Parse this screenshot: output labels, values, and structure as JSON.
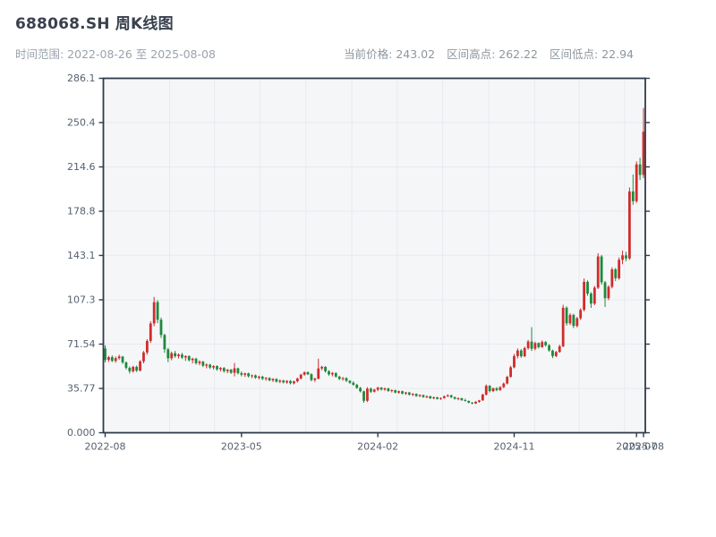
{
  "header": {
    "title": "688068.SH 周K线图",
    "subtitle": "时间范围: 2022-08-26 至 2025-08-08",
    "stats": [
      {
        "label": "当前价格",
        "value": "243.02",
        "text": "当前价格: 243.02"
      },
      {
        "label": "区间高点",
        "value": "262.22",
        "text": "区间高点: 262.22"
      },
      {
        "label": "区间低点",
        "value": "22.94",
        "text": "区间低点: 22.94"
      }
    ]
  },
  "colors": {
    "up": "#d02c2c",
    "down": "#1e8a3c",
    "plot_bg": "#f5f6f8",
    "grid": "#e7eaef",
    "spine": "#2f3b4c",
    "tick_label": "#55606e",
    "title": "#39414e",
    "muted": "#99a2ac"
  },
  "chart_data": {
    "type": "candlestick",
    "title": "688068.SH 周K线图",
    "interval": "weekly",
    "date_range": {
      "start": "2022-08-26",
      "end": "2025-08-08"
    },
    "current_price": 243.02,
    "range_high": 262.22,
    "range_low": 22.94,
    "ylim": [
      0,
      286.1
    ],
    "grid": "on",
    "color_convention": "red = weekly gain, green = weekly loss",
    "y_ticks": [
      {
        "v": 0,
        "label": "0.000"
      },
      {
        "v": 35.77,
        "label": "35.77"
      },
      {
        "v": 71.54,
        "label": "71.54"
      },
      {
        "v": 107.3,
        "label": "107.3"
      },
      {
        "v": 143.1,
        "label": "143.1"
      },
      {
        "v": 178.8,
        "label": "178.8"
      },
      {
        "v": 214.6,
        "label": "214.6"
      },
      {
        "v": 250.4,
        "label": "250.4"
      },
      {
        "v": 286.1,
        "label": "286.1"
      }
    ],
    "x_ticks": [
      {
        "label": "2022-08",
        "week": 0
      },
      {
        "label": "2023-05",
        "week": 39
      },
      {
        "label": "2024-02",
        "week": 78
      },
      {
        "label": "2024-11",
        "week": 117
      },
      {
        "label": "2025-07",
        "week": 152
      },
      {
        "label": "2025-08",
        "week": 154
      }
    ],
    "columns": [
      "date",
      "open",
      "high",
      "low",
      "close"
    ],
    "candles": [
      [
        "2022-08-26",
        68.0,
        70.5,
        56.8,
        58.8
      ],
      [
        "2022-09-02",
        58.8,
        62.0,
        57.2,
        61.0
      ],
      [
        "2022-09-09",
        61.0,
        62.5,
        57.0,
        58.0
      ],
      [
        "2022-09-16",
        58.0,
        61.5,
        56.5,
        60.2
      ],
      [
        "2022-09-23",
        60.2,
        63.0,
        59.0,
        61.5
      ],
      [
        "2022-09-30",
        61.5,
        62.0,
        55.5,
        56.8
      ],
      [
        "2022-10-07",
        56.8,
        57.5,
        51.0,
        52.4
      ],
      [
        "2022-10-14",
        52.4,
        53.5,
        47.8,
        49.6
      ],
      [
        "2022-10-21",
        49.6,
        54.0,
        48.5,
        53.2
      ],
      [
        "2022-10-28",
        53.2,
        54.2,
        49.0,
        50.1
      ],
      [
        "2022-11-04",
        50.1,
        58.5,
        49.5,
        57.6
      ],
      [
        "2022-11-11",
        57.6,
        66.0,
        56.0,
        64.8
      ],
      [
        "2022-11-18",
        64.8,
        75.5,
        63.0,
        74.1
      ],
      [
        "2022-11-25",
        74.1,
        90.0,
        72.5,
        88.2
      ],
      [
        "2022-12-02",
        88.2,
        109.6,
        86.0,
        105.4
      ],
      [
        "2022-12-09",
        105.4,
        107.0,
        88.5,
        91.2
      ],
      [
        "2022-12-16",
        91.2,
        93.0,
        76.5,
        78.9
      ],
      [
        "2022-12-23",
        78.9,
        80.0,
        64.5,
        67.3
      ],
      [
        "2022-12-30",
        67.3,
        68.5,
        57.0,
        60.1
      ],
      [
        "2023-01-06",
        60.1,
        65.5,
        58.5,
        64.2
      ],
      [
        "2023-01-13",
        64.2,
        66.0,
        60.5,
        61.8
      ],
      [
        "2023-01-20",
        61.8,
        64.0,
        60.0,
        63.1
      ],
      [
        "2023-01-27",
        63.1,
        64.5,
        59.5,
        60.7
      ],
      [
        "2023-02-03",
        60.7,
        62.5,
        58.0,
        61.9
      ],
      [
        "2023-02-10",
        61.9,
        62.5,
        57.5,
        58.6
      ],
      [
        "2023-02-17",
        58.6,
        60.5,
        56.0,
        59.8
      ],
      [
        "2023-02-24",
        59.8,
        60.5,
        55.0,
        56.2
      ],
      [
        "2023-03-03",
        56.2,
        58.5,
        54.5,
        57.4
      ],
      [
        "2023-03-10",
        57.4,
        58.0,
        53.0,
        54.1
      ],
      [
        "2023-03-17",
        54.1,
        56.0,
        52.0,
        55.0
      ],
      [
        "2023-03-24",
        55.0,
        55.5,
        51.5,
        52.6
      ],
      [
        "2023-03-31",
        52.6,
        54.5,
        51.0,
        53.8
      ],
      [
        "2023-04-07",
        53.8,
        54.5,
        50.0,
        51.2
      ],
      [
        "2023-04-14",
        51.2,
        53.0,
        49.5,
        52.3
      ],
      [
        "2023-04-21",
        52.3,
        53.0,
        48.5,
        49.7
      ],
      [
        "2023-04-28",
        49.7,
        51.5,
        48.0,
        50.9
      ],
      [
        "2023-05-05",
        50.9,
        51.5,
        47.5,
        48.4
      ],
      [
        "2023-05-12",
        48.4,
        56.3,
        45.5,
        52.0
      ],
      [
        "2023-05-19",
        52.0,
        52.5,
        47.0,
        48.1
      ],
      [
        "2023-05-26",
        48.1,
        49.5,
        45.5,
        46.8
      ],
      [
        "2023-06-02",
        46.8,
        48.5,
        45.0,
        47.9
      ],
      [
        "2023-06-09",
        47.9,
        48.5,
        44.5,
        45.6
      ],
      [
        "2023-06-16",
        45.6,
        47.0,
        44.0,
        46.3
      ],
      [
        "2023-06-23",
        46.3,
        47.0,
        43.5,
        44.4
      ],
      [
        "2023-06-30",
        44.4,
        46.0,
        43.0,
        45.3
      ],
      [
        "2023-07-07",
        45.3,
        46.0,
        42.5,
        43.5
      ],
      [
        "2023-07-14",
        43.5,
        45.0,
        42.0,
        44.2
      ],
      [
        "2023-07-21",
        44.2,
        44.8,
        41.5,
        42.3
      ],
      [
        "2023-07-28",
        42.3,
        44.0,
        41.0,
        43.4
      ],
      [
        "2023-08-04",
        43.4,
        44.0,
        40.5,
        41.2
      ],
      [
        "2023-08-11",
        41.2,
        43.0,
        40.0,
        42.1
      ],
      [
        "2023-08-18",
        42.1,
        42.8,
        39.8,
        40.6
      ],
      [
        "2023-08-25",
        40.6,
        42.5,
        39.5,
        41.8
      ],
      [
        "2023-09-01",
        41.8,
        42.5,
        39.0,
        39.9
      ],
      [
        "2023-09-08",
        39.9,
        42.0,
        39.0,
        41.5
      ],
      [
        "2023-09-15",
        41.5,
        44.5,
        40.5,
        43.8
      ],
      [
        "2023-09-22",
        43.8,
        47.5,
        43.0,
        46.9
      ],
      [
        "2023-09-29",
        46.9,
        49.5,
        46.0,
        48.8
      ],
      [
        "2023-10-06",
        48.8,
        49.5,
        46.5,
        47.2
      ],
      [
        "2023-10-13",
        47.2,
        48.0,
        41.5,
        42.6
      ],
      [
        "2023-10-20",
        42.6,
        44.5,
        41.0,
        43.7
      ],
      [
        "2023-10-27",
        43.7,
        59.8,
        43.0,
        51.9
      ],
      [
        "2023-11-03",
        51.9,
        54.0,
        50.5,
        53.2
      ],
      [
        "2023-11-10",
        53.2,
        53.8,
        48.5,
        49.6
      ],
      [
        "2023-11-17",
        49.6,
        50.5,
        46.0,
        47.1
      ],
      [
        "2023-11-24",
        47.1,
        49.0,
        45.5,
        48.2
      ],
      [
        "2023-12-01",
        48.2,
        48.8,
        44.5,
        45.3
      ],
      [
        "2023-12-08",
        45.3,
        46.0,
        42.5,
        43.4
      ],
      [
        "2023-12-15",
        43.4,
        45.0,
        42.0,
        44.1
      ],
      [
        "2023-12-22",
        44.1,
        44.8,
        41.0,
        41.9
      ],
      [
        "2023-12-29",
        41.9,
        42.5,
        39.5,
        40.3
      ],
      [
        "2024-01-05",
        40.3,
        41.5,
        38.0,
        38.7
      ],
      [
        "2024-01-12",
        38.7,
        39.5,
        35.5,
        36.2
      ],
      [
        "2024-01-19",
        36.2,
        37.0,
        32.5,
        33.4
      ],
      [
        "2024-01-26",
        33.4,
        34.0,
        24.2,
        25.8
      ],
      [
        "2024-02-02",
        25.8,
        36.8,
        24.8,
        35.6
      ],
      [
        "2024-02-09",
        35.6,
        36.5,
        32.0,
        33.1
      ],
      [
        "2024-02-16",
        33.1,
        35.5,
        32.5,
        34.8
      ],
      [
        "2024-02-23",
        34.8,
        37.2,
        33.5,
        36.4
      ],
      [
        "2024-03-01",
        36.4,
        37.0,
        34.0,
        34.9
      ],
      [
        "2024-03-08",
        34.9,
        36.5,
        33.8,
        35.8
      ],
      [
        "2024-03-15",
        35.8,
        36.2,
        33.0,
        33.7
      ],
      [
        "2024-03-22",
        33.7,
        35.0,
        32.5,
        34.3
      ],
      [
        "2024-03-29",
        34.3,
        34.8,
        31.8,
        32.4
      ],
      [
        "2024-04-05",
        32.4,
        34.0,
        31.5,
        33.5
      ],
      [
        "2024-04-12",
        33.5,
        34.0,
        31.0,
        31.6
      ],
      [
        "2024-04-19",
        31.6,
        33.0,
        30.5,
        32.5
      ],
      [
        "2024-04-26",
        32.5,
        33.0,
        30.0,
        30.8
      ],
      [
        "2024-05-03",
        30.8,
        32.0,
        29.5,
        31.4
      ],
      [
        "2024-05-10",
        31.4,
        31.8,
        29.0,
        29.6
      ],
      [
        "2024-05-17",
        29.6,
        31.0,
        28.8,
        30.4
      ],
      [
        "2024-05-24",
        30.4,
        30.8,
        28.2,
        28.8
      ],
      [
        "2024-05-31",
        28.8,
        30.0,
        27.8,
        29.5
      ],
      [
        "2024-06-07",
        29.5,
        29.8,
        27.2,
        27.8
      ],
      [
        "2024-06-14",
        27.8,
        29.2,
        27.0,
        28.6
      ],
      [
        "2024-06-21",
        28.6,
        29.0,
        26.8,
        27.3
      ],
      [
        "2024-06-28",
        27.3,
        28.5,
        26.5,
        28.0
      ],
      [
        "2024-07-05",
        28.0,
        30.0,
        27.5,
        29.4
      ],
      [
        "2024-07-12",
        29.4,
        31.0,
        28.8,
        30.2
      ],
      [
        "2024-07-19",
        30.2,
        30.8,
        28.0,
        28.7
      ],
      [
        "2024-07-26",
        28.7,
        29.2,
        26.8,
        27.4
      ],
      [
        "2024-08-02",
        27.4,
        28.5,
        26.2,
        27.9
      ],
      [
        "2024-08-09",
        27.9,
        28.2,
        25.8,
        26.3
      ],
      [
        "2024-08-16",
        26.3,
        27.5,
        25.2,
        25.7
      ],
      [
        "2024-08-23",
        25.7,
        26.0,
        23.8,
        24.3
      ],
      [
        "2024-08-30",
        24.3,
        24.8,
        22.94,
        23.6
      ],
      [
        "2024-09-06",
        23.6,
        25.5,
        23.2,
        25.0
      ],
      [
        "2024-09-13",
        25.0,
        26.5,
        24.2,
        26.1
      ],
      [
        "2024-09-20",
        26.1,
        31.5,
        25.8,
        30.8
      ],
      [
        "2024-09-27",
        30.8,
        39.0,
        30.0,
        37.9
      ],
      [
        "2024-10-04",
        37.9,
        38.5,
        32.5,
        33.6
      ],
      [
        "2024-10-11",
        33.6,
        36.5,
        32.8,
        35.9
      ],
      [
        "2024-10-18",
        35.9,
        36.8,
        33.5,
        34.4
      ],
      [
        "2024-10-25",
        34.4,
        37.5,
        33.8,
        36.8
      ],
      [
        "2024-11-01",
        36.8,
        40.5,
        36.0,
        39.7
      ],
      [
        "2024-11-08",
        39.7,
        46.0,
        39.0,
        45.1
      ],
      [
        "2024-11-15",
        45.1,
        54.0,
        44.5,
        52.8
      ],
      [
        "2024-11-22",
        52.8,
        63.5,
        52.0,
        61.9
      ],
      [
        "2024-11-29",
        61.9,
        68.0,
        60.0,
        66.4
      ],
      [
        "2024-12-06",
        66.4,
        67.5,
        60.5,
        61.7
      ],
      [
        "2024-12-13",
        61.7,
        69.5,
        61.0,
        68.3
      ],
      [
        "2024-12-20",
        68.3,
        75.0,
        67.0,
        73.6
      ],
      [
        "2024-12-27",
        73.6,
        85.2,
        66.0,
        67.8
      ],
      [
        "2025-01-03",
        67.8,
        73.5,
        66.5,
        72.4
      ],
      [
        "2025-01-10",
        72.4,
        73.0,
        68.0,
        69.1
      ],
      [
        "2025-01-17",
        69.1,
        74.5,
        68.5,
        73.2
      ],
      [
        "2025-01-24",
        73.2,
        74.0,
        69.5,
        70.6
      ],
      [
        "2025-01-31",
        70.6,
        71.5,
        65.5,
        66.4
      ],
      [
        "2025-02-07",
        66.4,
        67.0,
        60.2,
        61.9
      ],
      [
        "2025-02-14",
        61.9,
        66.0,
        61.0,
        65.2
      ],
      [
        "2025-02-21",
        65.2,
        71.0,
        64.5,
        69.8
      ],
      [
        "2025-02-28",
        69.8,
        103.3,
        69.0,
        100.9
      ],
      [
        "2025-03-07",
        100.9,
        102.0,
        86.5,
        88.3
      ],
      [
        "2025-03-14",
        88.3,
        96.5,
        87.0,
        95.1
      ],
      [
        "2025-03-21",
        95.1,
        96.0,
        84.5,
        86.2
      ],
      [
        "2025-03-28",
        86.2,
        93.5,
        85.0,
        92.4
      ],
      [
        "2025-04-04",
        92.4,
        100.5,
        91.0,
        99.2
      ],
      [
        "2025-04-11",
        99.2,
        124.5,
        98.0,
        121.8
      ],
      [
        "2025-04-18",
        121.8,
        123.0,
        110.5,
        112.3
      ],
      [
        "2025-04-25",
        112.3,
        113.5,
        100.8,
        104.2
      ],
      [
        "2025-05-02",
        104.2,
        118.5,
        103.0,
        117.1
      ],
      [
        "2025-05-09",
        117.1,
        144.9,
        116.0,
        142.3
      ],
      [
        "2025-05-16",
        142.3,
        143.5,
        119.5,
        121.4
      ],
      [
        "2025-05-23",
        121.4,
        122.5,
        101.5,
        108.6
      ],
      [
        "2025-05-30",
        108.6,
        119.0,
        107.0,
        117.8
      ],
      [
        "2025-06-06",
        117.8,
        133.5,
        116.5,
        131.9
      ],
      [
        "2025-06-13",
        131.9,
        133.0,
        122.5,
        124.7
      ],
      [
        "2025-06-20",
        124.7,
        141.5,
        123.5,
        139.6
      ],
      [
        "2025-06-27",
        139.6,
        147.0,
        136.0,
        143.2
      ],
      [
        "2025-07-04",
        143.2,
        146.0,
        138.5,
        140.7
      ],
      [
        "2025-07-11",
        140.7,
        198.0,
        139.5,
        194.8
      ],
      [
        "2025-07-18",
        194.8,
        208.5,
        184.0,
        186.9
      ],
      [
        "2025-07-25",
        186.9,
        219.0,
        185.5,
        216.6
      ],
      [
        "2025-08-01",
        216.6,
        222.0,
        204.0,
        208.1
      ],
      [
        "2025-08-08",
        208.1,
        262.22,
        205.5,
        243.02
      ]
    ]
  }
}
